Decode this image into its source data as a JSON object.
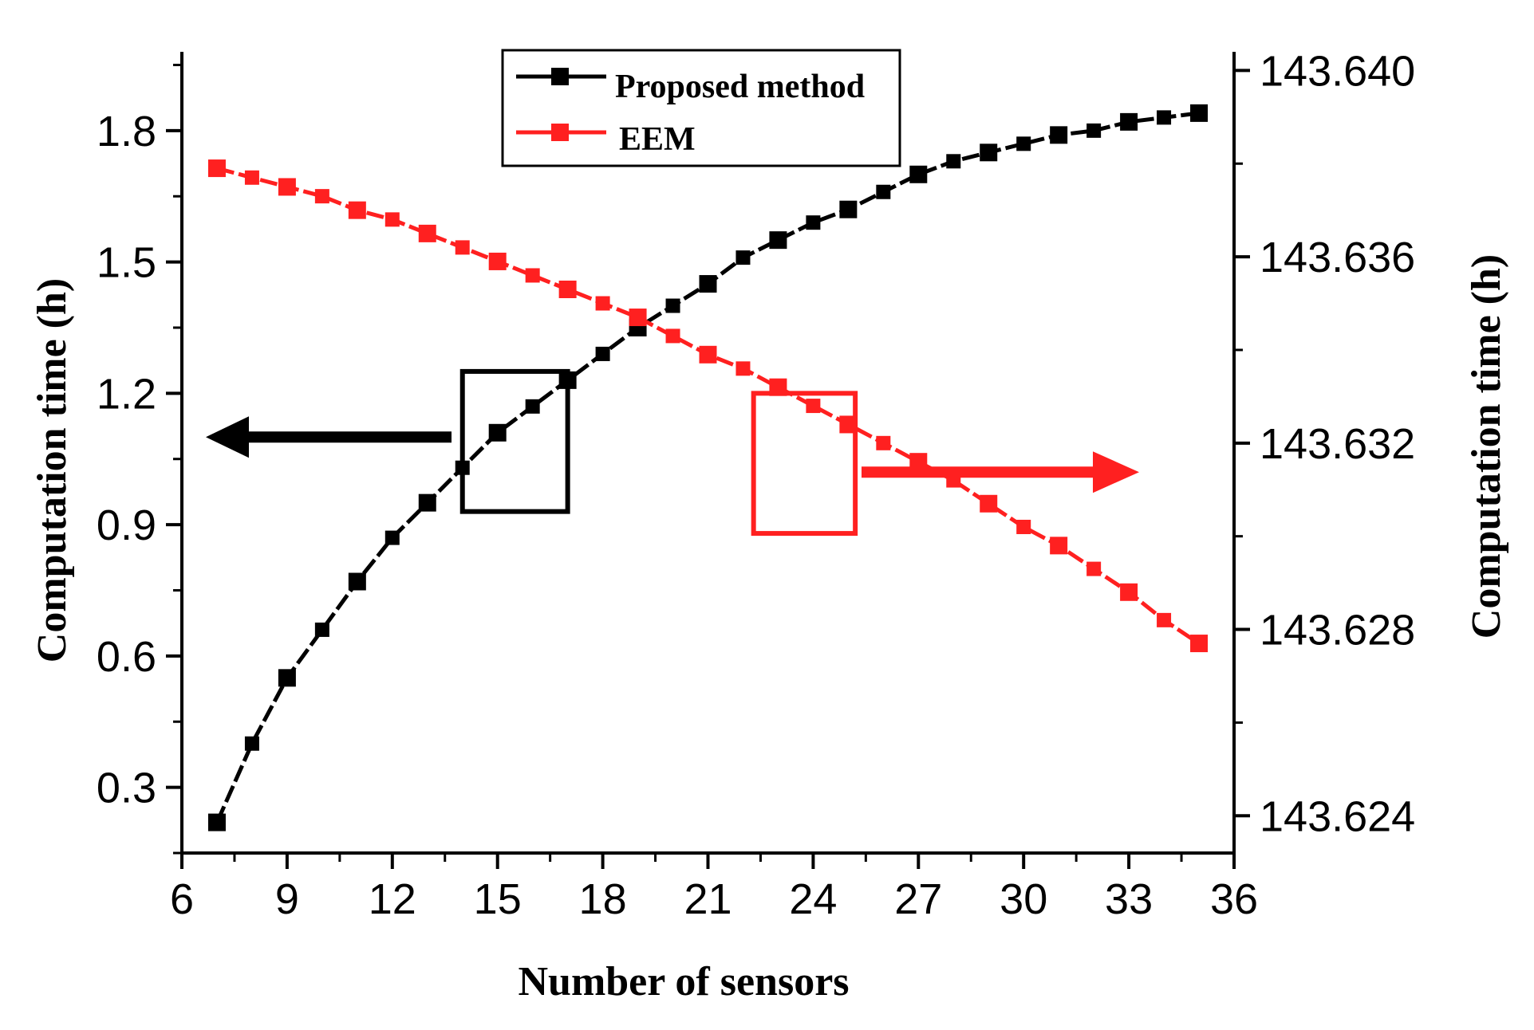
{
  "chart_data": {
    "type": "line",
    "xlabel": "Number of sensors",
    "ylabel_left": "Computation time (h)",
    "ylabel_right": "Computation time (h)",
    "xlim": [
      6,
      36
    ],
    "ylim_left": [
      0.15,
      1.98
    ],
    "ylim_right": [
      143.6232,
      143.6404
    ],
    "x_ticks": [
      6,
      9,
      12,
      15,
      18,
      21,
      24,
      27,
      30,
      33,
      36
    ],
    "x_tick_labels": [
      "6",
      "9",
      "12",
      "15",
      "18",
      "21",
      "24",
      "27",
      "30",
      "33",
      "36"
    ],
    "y_left_ticks": [
      0.3,
      0.6,
      0.9,
      1.2,
      1.5,
      1.8
    ],
    "y_left_tick_labels": [
      "0.3",
      "0.6",
      "0.9",
      "1.2",
      "1.5",
      "1.8"
    ],
    "y_right_ticks": [
      143.624,
      143.628,
      143.632,
      143.636,
      143.64
    ],
    "y_right_tick_labels": [
      "143.624",
      "143.628",
      "143.632",
      "143.636",
      "143.640"
    ],
    "x": [
      7,
      8,
      9,
      10,
      11,
      12,
      13,
      14,
      15,
      16,
      17,
      18,
      19,
      20,
      21,
      22,
      23,
      24,
      25,
      26,
      27,
      28,
      29,
      30,
      31,
      32,
      33,
      34,
      35
    ],
    "series": [
      {
        "name": "Proposed method",
        "axis": "left",
        "color": "#000000",
        "values": [
          0.22,
          0.4,
          0.55,
          0.66,
          0.77,
          0.87,
          0.95,
          1.03,
          1.11,
          1.17,
          1.23,
          1.29,
          1.35,
          1.4,
          1.45,
          1.51,
          1.55,
          1.59,
          1.62,
          1.66,
          1.7,
          1.73,
          1.75,
          1.77,
          1.79,
          1.8,
          1.82,
          1.83,
          1.84
        ]
      },
      {
        "name": "EEM",
        "axis": "right",
        "color": "#ff2020",
        "values": [
          143.6379,
          143.6377,
          143.6375,
          143.6373,
          143.637,
          143.6368,
          143.6365,
          143.6362,
          143.6359,
          143.6356,
          143.6353,
          143.635,
          143.6347,
          143.6343,
          143.6339,
          143.6336,
          143.6332,
          143.6328,
          143.6324,
          143.632,
          143.6316,
          143.6312,
          143.6307,
          143.6302,
          143.6298,
          143.6293,
          143.6288,
          143.6282,
          143.6277
        ]
      }
    ],
    "legend": {
      "position": "top-center",
      "entries": [
        "Proposed method",
        "EEM"
      ]
    },
    "annotations": [
      {
        "type": "box",
        "series": "Proposed method",
        "x_range": [
          14,
          17
        ],
        "y_range": [
          0.93,
          1.25
        ]
      },
      {
        "type": "arrow",
        "series": "Proposed method",
        "direction": "left",
        "points_to": "left axis"
      },
      {
        "type": "box",
        "series": "EEM",
        "x_range": [
          22.3,
          25.2
        ],
        "y_range": [
          0.88,
          1.2
        ]
      },
      {
        "type": "arrow",
        "series": "EEM",
        "direction": "right",
        "points_to": "right axis"
      }
    ]
  }
}
